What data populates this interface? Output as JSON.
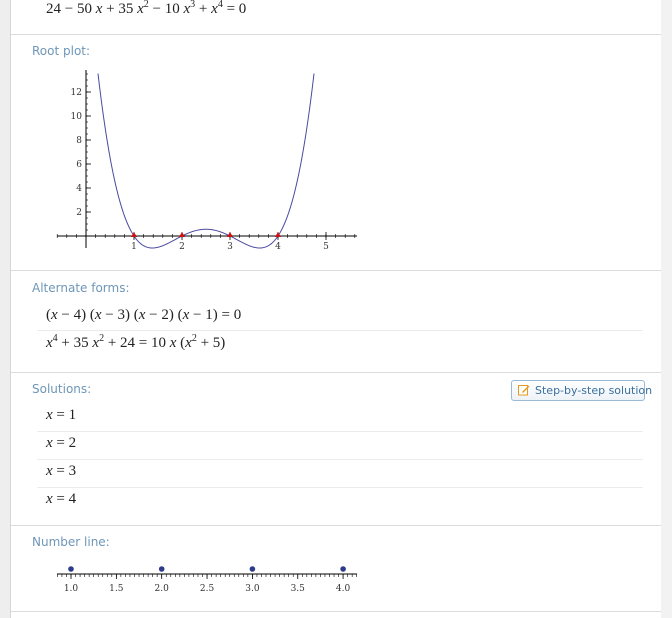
{
  "input": {
    "equation_html": "24 &minus; 50 <i>x</i> + 35 <i>x</i><sup>2</sup> &minus; 10 <i>x</i><sup>3</sup> + <i>x</i><sup>4</sup> = 0"
  },
  "root_plot": {
    "title": "Root plot:",
    "chart_data": {
      "type": "line",
      "series": [
        {
          "function": "24 - 50x + 35x^2 - 10x^3 + x^4"
        }
      ],
      "roots": [
        1,
        2,
        3,
        4
      ],
      "xlim": [
        -0.5,
        5.6
      ],
      "ylim": [
        -2,
        14
      ],
      "x_ticks": [
        "1",
        "2",
        "3",
        "4",
        "5"
      ],
      "y_ticks": [
        "2",
        "4",
        "6",
        "8",
        "10",
        "12"
      ],
      "colors": {
        "curve": "#4a4aa0",
        "roots": "#d01010"
      }
    }
  },
  "alternate_forms": {
    "title": "Alternate forms:",
    "forms_html": [
      "(<i>x</i> &minus; 4) (<i>x</i> &minus; 3) (<i>x</i> &minus; 2) (<i>x</i> &minus; 1) = 0",
      "<i>x</i><sup>4</sup> + 35 <i>x</i><sup>2</sup> + 24 = 10 <i>x</i> (<i>x</i><sup>2</sup> + 5)"
    ]
  },
  "solutions": {
    "title": "Solutions:",
    "step_button_label": "Step-by-step solution",
    "items": [
      "x = 1",
      "x = 2",
      "x = 3",
      "x = 4"
    ]
  },
  "number_line": {
    "title": "Number line:",
    "chart_data": {
      "type": "scatter",
      "points": [
        1.0,
        2.0,
        3.0,
        4.0
      ],
      "xlim": [
        0.95,
        4.05
      ],
      "tick_labels": [
        "1.0",
        "1.5",
        "2.0",
        "2.5",
        "3.0",
        "3.5",
        "4.0"
      ],
      "colors": {
        "points": "#2c3b8c"
      }
    }
  }
}
